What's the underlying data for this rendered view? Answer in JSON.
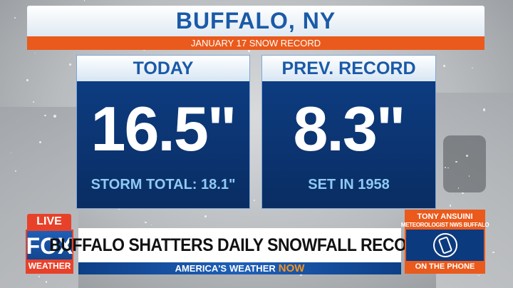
{
  "header": {
    "title": "BUFFALO, NY",
    "subtitle": "JANUARY 17 SNOW RECORD"
  },
  "panels": [
    {
      "heading": "TODAY",
      "value": "16.5\"",
      "note": "STORM TOTAL: 18.1\""
    },
    {
      "heading": "PREV. RECORD",
      "value": "8.3\"",
      "note": "SET IN 1958"
    }
  ],
  "lower_third": {
    "live": "LIVE",
    "logo_top": "FOX",
    "logo_bottom": "WEATHER",
    "headline": "BUFFALO SHATTERS DAILY SNOWFALL RECORD",
    "tagline": [
      "AMERICA'S",
      "WEATHER",
      "NOW"
    ]
  },
  "caller": {
    "name": "TONY ANSUINI",
    "role": "METEOROLOGIST NWS BUFFALO",
    "status": "ON THE PHONE"
  }
}
